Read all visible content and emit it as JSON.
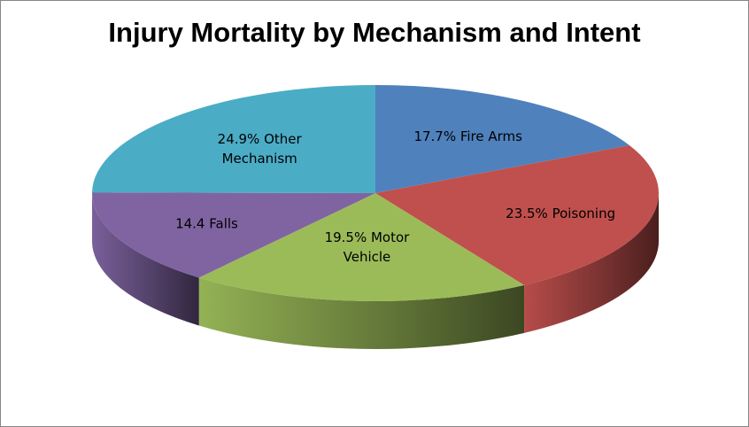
{
  "chart_data": {
    "type": "pie",
    "title": "Injury Mortality by Mechanism and Intent",
    "slices": [
      {
        "name": "Fire Arms",
        "value": 17.7,
        "label_lines": [
          "17.7% Fire Arms"
        ],
        "color": "#4f81bd"
      },
      {
        "name": "Poisoning",
        "value": 23.5,
        "label_lines": [
          "23.5% Poisoning"
        ],
        "color": "#c0504d"
      },
      {
        "name": "Motor Vehicle",
        "value": 19.5,
        "label_lines": [
          "19.5% Motor",
          "Vehicle"
        ],
        "color": "#9bbb59"
      },
      {
        "name": "Falls",
        "value": 14.4,
        "label_lines": [
          "14.4 Falls"
        ],
        "color": "#8064a2"
      },
      {
        "name": "Other Mechanism",
        "value": 24.9,
        "label_lines": [
          "24.9% Other",
          "Mechanism"
        ],
        "color": "#4bacc6"
      }
    ],
    "legend": "none",
    "style": "3d"
  }
}
